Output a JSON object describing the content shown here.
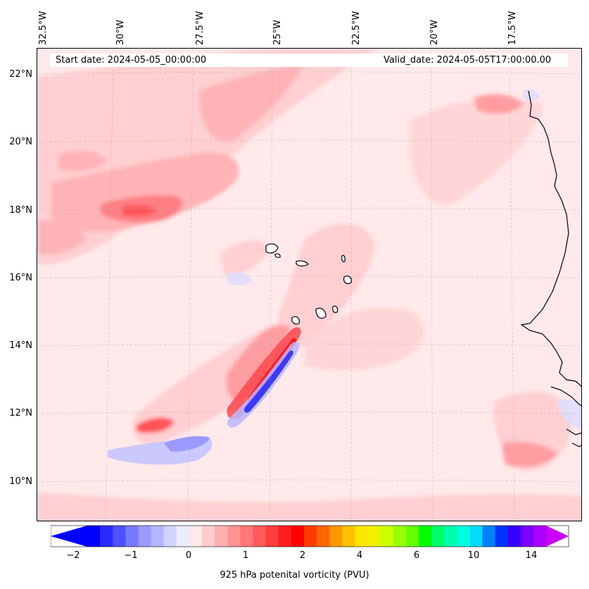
{
  "header": {
    "start_date": "Start date: 2024-05-05_00:00:00",
    "valid_date": "Valid_date: 2024-05-05T17:00:00.00"
  },
  "axes": {
    "longitude_labels": [
      "32.5°W",
      "30°W",
      "27.5°W",
      "25°W",
      "22.5°W",
      "20°W",
      "17.5°W"
    ],
    "latitude_labels": [
      "22°N",
      "20°N",
      "18°N",
      "16°N",
      "14°N",
      "12°N",
      "10°N"
    ],
    "gridlines": true
  },
  "colorbar": {
    "label": "925 hPa potenital vorticity (PVU)",
    "ticks": [
      "−2",
      "−1",
      "0",
      "1",
      "2",
      "4",
      "6",
      "10",
      "14"
    ],
    "colors": [
      "#0000ff",
      "#2a2aff",
      "#5050ff",
      "#7878ff",
      "#9a9aff",
      "#b4b4ff",
      "#d2d2ff",
      "#ececff",
      "#ffe8e8",
      "#ffcccc",
      "#ffb0b0",
      "#ff9494",
      "#ff7878",
      "#ff5a5a",
      "#ff3c3c",
      "#ff1e1e",
      "#ff0000",
      "#ff3c00",
      "#ff6600",
      "#ff9900",
      "#ffc000",
      "#ffe600",
      "#f0f000",
      "#ccff00",
      "#99ff00",
      "#66ff00",
      "#00ff00",
      "#00ff66",
      "#00ffaa",
      "#00ffdd",
      "#00ddff",
      "#0080ff",
      "#0033ff",
      "#3300ff",
      "#7700ff",
      "#aa00ff"
    ],
    "extend_low_color": "#0000ff",
    "extend_high_color": "#cc00ff"
  },
  "map": {
    "background_color": "#ffe9ea",
    "coastline_color": "#000000"
  }
}
